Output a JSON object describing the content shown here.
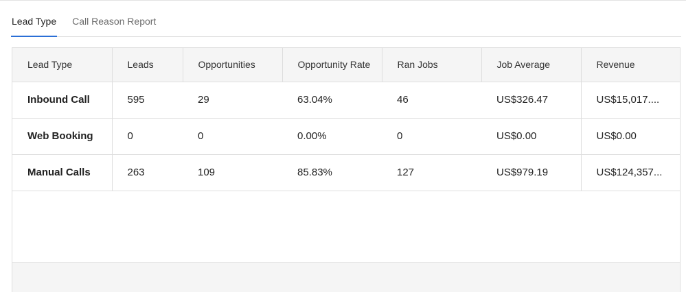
{
  "tabs": [
    {
      "label": "Lead Type",
      "active": true
    },
    {
      "label": "Call Reason Report",
      "active": false
    }
  ],
  "table": {
    "headers": [
      "Lead Type",
      "Leads",
      "Opportunities",
      "Opportunity Rate",
      "Ran Jobs",
      "Job Average",
      "Revenue"
    ],
    "rows": [
      [
        "Inbound Call",
        "595",
        "29",
        "63.04%",
        "46",
        "US$326.47",
        "US$15,017...."
      ],
      [
        "Web Booking",
        "0",
        "0",
        "0.00%",
        "0",
        "US$0.00",
        "US$0.00"
      ],
      [
        "Manual Calls",
        "263",
        "109",
        "85.83%",
        "127",
        "US$979.19",
        "US$124,357..."
      ]
    ]
  },
  "colors": {
    "accent": "#2b6fd6",
    "header_bg": "#f5f5f5",
    "border": "#dedede"
  }
}
